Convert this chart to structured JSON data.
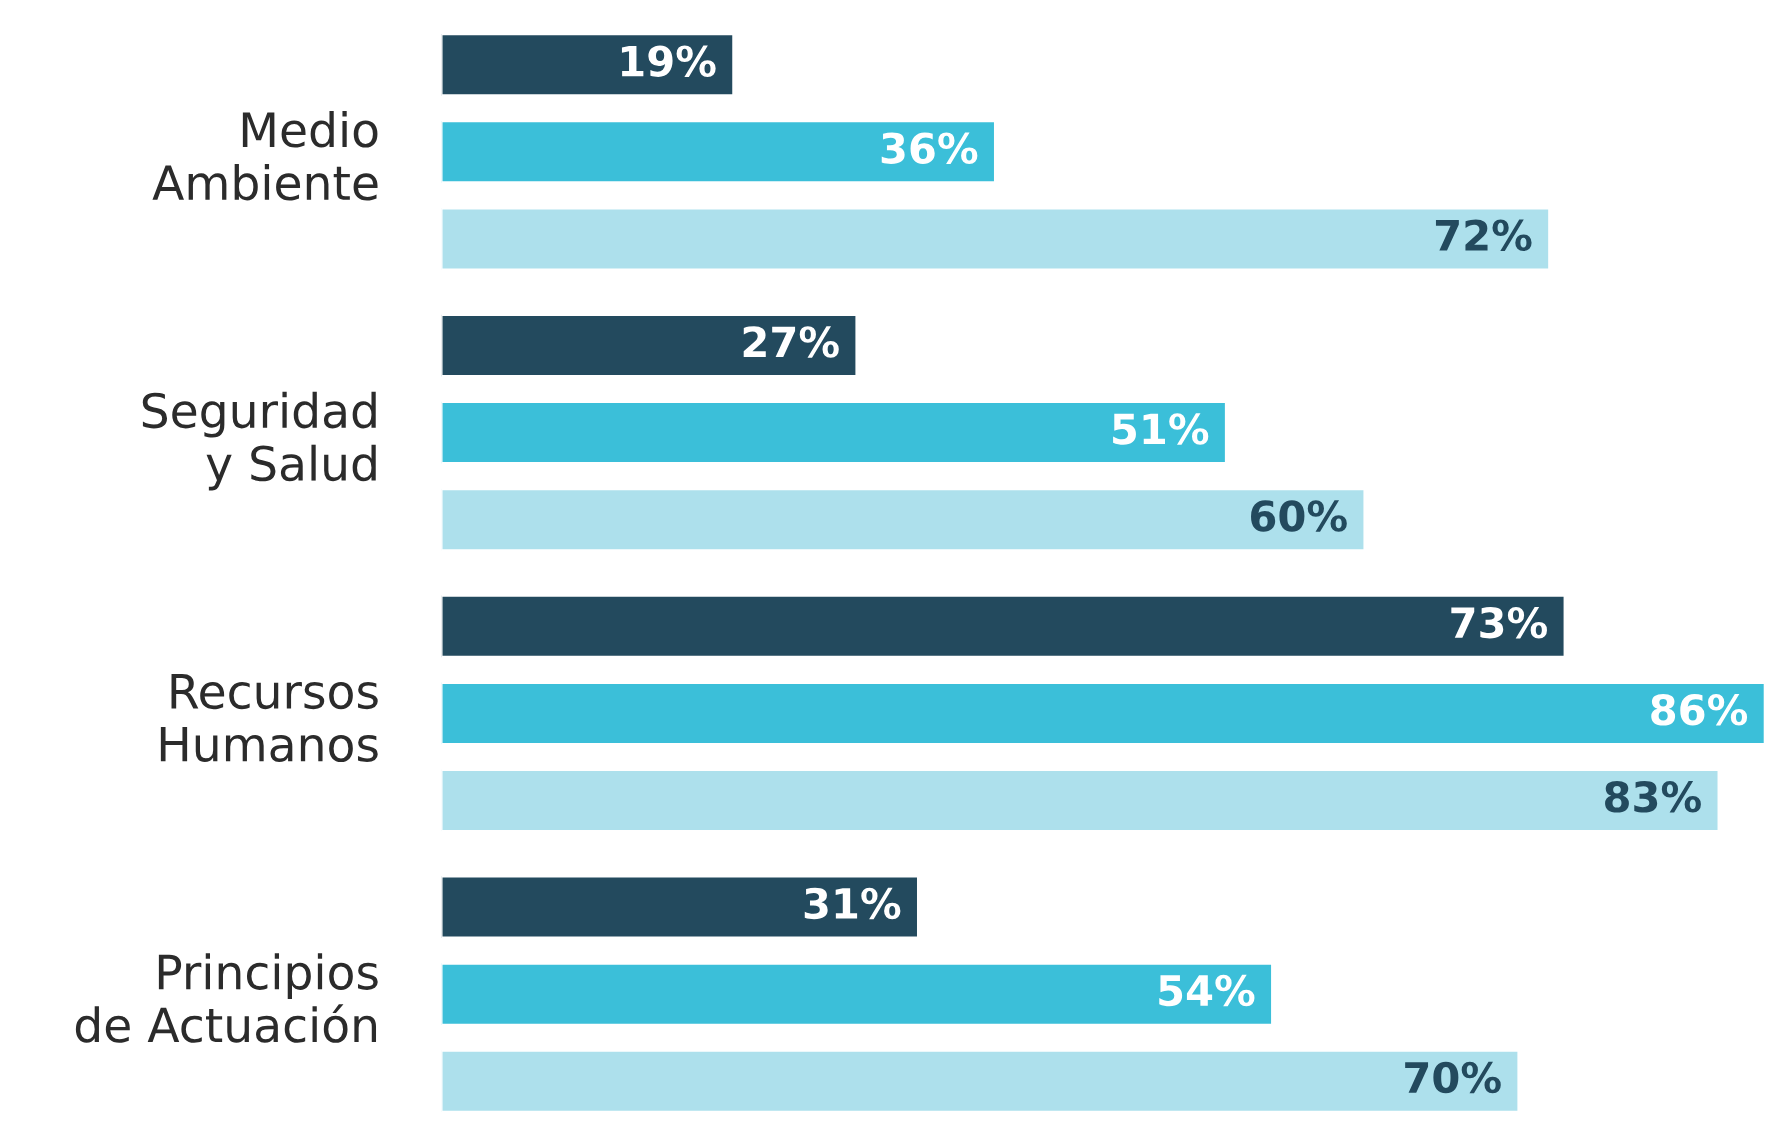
{
  "chart_data": {
    "type": "bar",
    "orientation": "horizontal",
    "categories": [
      "Medio\nAmbiente",
      "Seguridad\ny Salud",
      "Recursos\nHumanos",
      "Principios\nde Actuación"
    ],
    "series": [
      {
        "color": "#234a5e",
        "values": [
          19,
          27,
          73,
          31
        ],
        "value_labels": [
          "19%",
          "27%",
          "73%",
          "31%"
        ]
      },
      {
        "color": "#3bbfd9",
        "values": [
          36,
          51,
          86,
          54
        ],
        "value_labels": [
          "36%",
          "51%",
          "86%",
          "54%"
        ]
      },
      {
        "color": "#ade0ec",
        "values": [
          72,
          60,
          83,
          70
        ],
        "value_labels": [
          "72%",
          "60%",
          "83%",
          "70%"
        ]
      }
    ],
    "grid": false
  }
}
